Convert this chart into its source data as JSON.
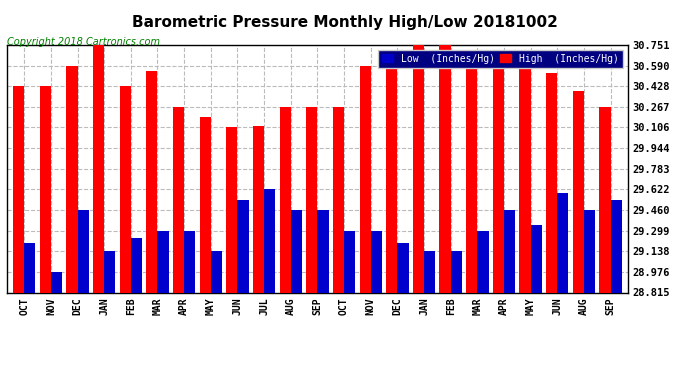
{
  "title": "Barometric Pressure Monthly High/Low 20181002",
  "copyright": "Copyright 2018 Cartronics.com",
  "months": [
    "OCT",
    "NOV",
    "DEC",
    "JAN",
    "FEB",
    "MAR",
    "APR",
    "MAY",
    "JUN",
    "JUL",
    "AUG",
    "SEP",
    "OCT",
    "NOV",
    "DEC",
    "JAN",
    "FEB",
    "MAR",
    "APR",
    "MAY",
    "JUN",
    "AUG",
    "SEP"
  ],
  "high_values": [
    30.428,
    30.428,
    30.59,
    30.751,
    30.428,
    30.55,
    30.267,
    30.19,
    30.106,
    30.12,
    30.267,
    30.267,
    30.267,
    30.59,
    30.64,
    30.751,
    30.751,
    30.7,
    30.59,
    30.59,
    30.53,
    30.39,
    30.267
  ],
  "low_values": [
    29.2,
    28.976,
    29.46,
    29.138,
    29.24,
    29.299,
    29.299,
    29.138,
    29.54,
    29.622,
    29.46,
    29.46,
    29.299,
    29.299,
    29.2,
    29.138,
    29.138,
    29.299,
    29.46,
    29.34,
    29.59,
    29.46,
    29.54
  ],
  "yticks": [
    28.815,
    28.976,
    29.138,
    29.299,
    29.46,
    29.622,
    29.783,
    29.944,
    30.106,
    30.267,
    30.428,
    30.59,
    30.751
  ],
  "ymin": 28.815,
  "ymax": 30.751,
  "bar_width": 0.42,
  "high_color": "#ff0000",
  "low_color": "#0000cc",
  "bg_color": "#ffffff",
  "grid_color": "#bbbbbb",
  "title_fontsize": 11,
  "copyright_fontsize": 7
}
